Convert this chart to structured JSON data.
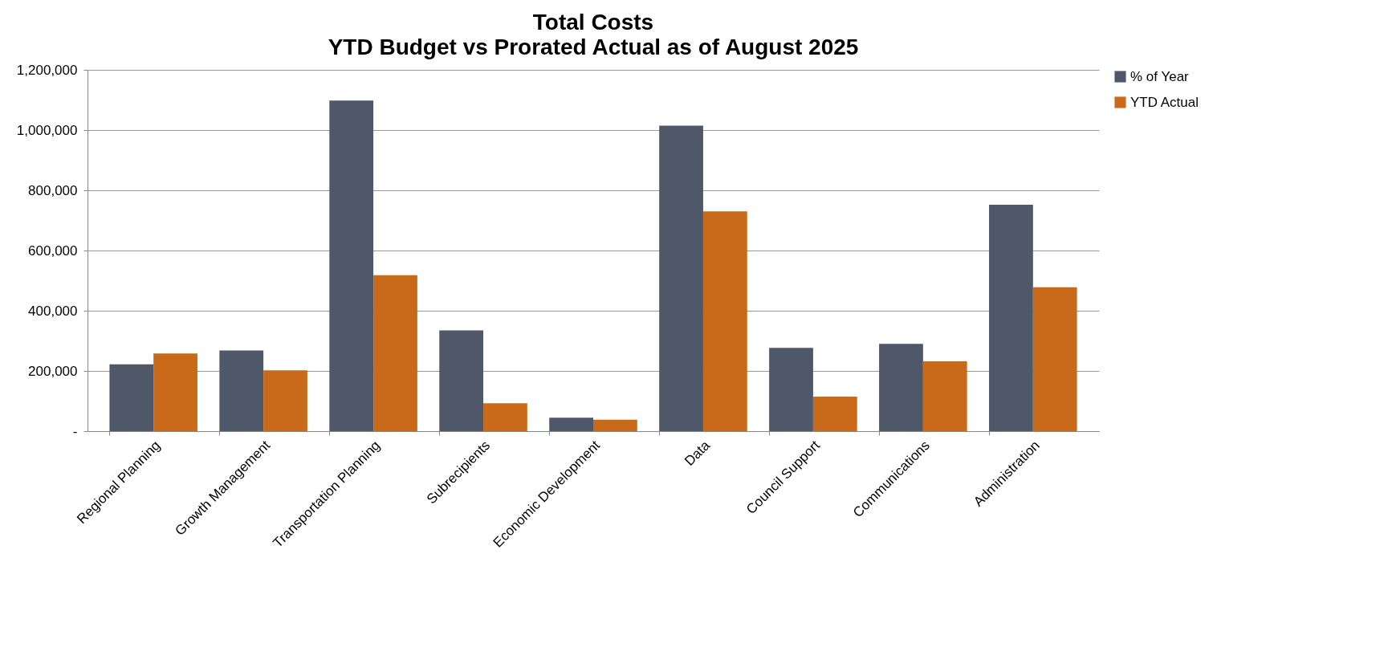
{
  "chart_data": {
    "type": "bar",
    "title": "Total Costs",
    "subtitle": "YTD Budget vs Prorated Actual as of August 2025",
    "categories": [
      "Regional Planning",
      "Growth Management",
      "Transportation Planning",
      "Subrecipients",
      "Economic Development",
      "Data",
      "Council Support",
      "Communications",
      "Administration"
    ],
    "series": [
      {
        "name": "% of Year",
        "color": "#4f5869",
        "values": [
          222000,
          268000,
          1098000,
          335000,
          45000,
          1015000,
          277000,
          290000,
          752000
        ]
      },
      {
        "name": "YTD Actual",
        "color": "#c96a1b",
        "values": [
          258000,
          202000,
          518000,
          93000,
          38000,
          730000,
          115000,
          232000,
          478000
        ]
      }
    ],
    "ylim": [
      0,
      1200000
    ],
    "yticks": [
      {
        "value": 0,
        "label": "-"
      },
      {
        "value": 200000,
        "label": "200,000"
      },
      {
        "value": 400000,
        "label": "400,000"
      },
      {
        "value": 600000,
        "label": "600,000"
      },
      {
        "value": 800000,
        "label": "800,000"
      },
      {
        "value": 1000000,
        "label": "1,000,000"
      },
      {
        "value": 1200000,
        "label": "1,200,000"
      }
    ],
    "grid": "y",
    "legend": "right"
  }
}
